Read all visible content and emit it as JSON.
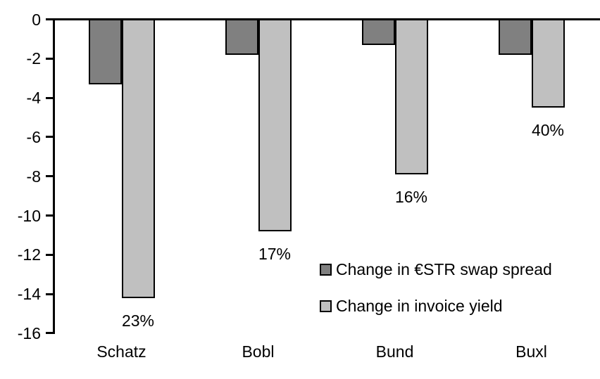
{
  "chart_data": {
    "type": "bar",
    "orientation": "vertical",
    "title": "",
    "xlabel": "",
    "ylabel": "",
    "categories": [
      "Schatz",
      "Bobl",
      "Bund",
      "Buxl"
    ],
    "series": [
      {
        "name": "Change in €STR swap spread",
        "color": "#808080",
        "values": [
          -3.3,
          -1.8,
          -1.3,
          -1.8
        ]
      },
      {
        "name": "Change in invoice yield",
        "color": "#C0C0C0",
        "values": [
          -14.2,
          -10.8,
          -7.9,
          -4.5
        ],
        "data_labels": [
          "23%",
          "17%",
          "16%",
          "40%"
        ]
      }
    ],
    "ylim": [
      -16,
      0
    ],
    "yticks": [
      "0",
      "-2",
      "-4",
      "-6",
      "-8",
      "-10",
      "-12",
      "-14",
      "-16"
    ],
    "grid": false,
    "legend_position": "inside-right",
    "background_color": "#FFFFFF",
    "axis_color": "#000000",
    "bar_border_color": "#000000",
    "text_color": "#000000"
  }
}
